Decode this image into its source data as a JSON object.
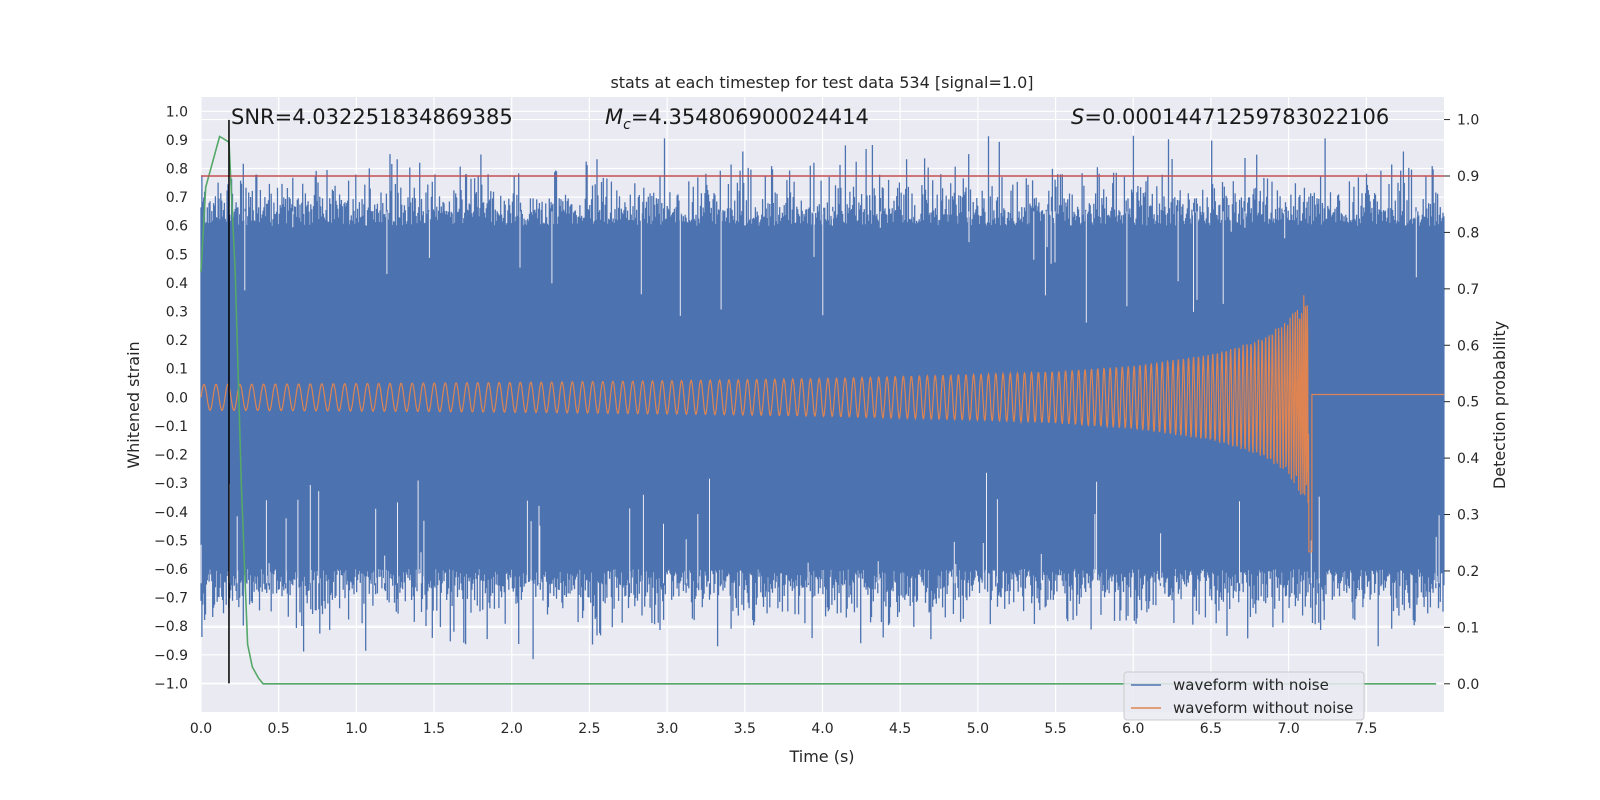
{
  "chart_data": {
    "type": "line",
    "title": "stats at each timestep for test data 534 [signal=1.0]",
    "xlabel": "Time (s)",
    "ylabel_left": "Whitened strain",
    "ylabel_right": "Detection probability",
    "xlim": [
      0.0,
      8.0
    ],
    "ylim_left": [
      -1.1,
      1.05
    ],
    "ylim_right": [
      -0.05,
      1.04
    ],
    "x_ticks": [
      0.0,
      0.5,
      1.0,
      1.5,
      2.0,
      2.5,
      3.0,
      3.5,
      4.0,
      4.5,
      5.0,
      5.5,
      6.0,
      6.5,
      7.0,
      7.5
    ],
    "x_tick_labels": [
      "0.0",
      "0.5",
      "1.0",
      "1.5",
      "2.0",
      "2.5",
      "3.0",
      "3.5",
      "4.0",
      "4.5",
      "5.0",
      "5.5",
      "6.0",
      "6.5",
      "7.0",
      "7.5"
    ],
    "y_left_ticks": [
      1.0,
      0.9,
      0.8,
      0.7,
      0.6,
      0.5,
      0.4,
      0.3,
      0.2,
      0.1,
      0.0,
      -0.1,
      -0.2,
      -0.3,
      -0.4,
      -0.5,
      -0.6,
      -0.7,
      -0.8,
      -0.9,
      -1.0
    ],
    "y_left_tick_labels": [
      "1.0",
      "0.9",
      "0.8",
      "0.7",
      "0.6",
      "0.5",
      "0.4",
      "0.3",
      "0.2",
      "0.1",
      "0.0",
      "−0.1",
      "−0.2",
      "−0.3",
      "−0.4",
      "−0.5",
      "−0.6",
      "−0.7",
      "−0.8",
      "−0.9",
      "−1.0"
    ],
    "y_right_ticks": [
      1.0,
      0.9,
      0.8,
      0.7,
      0.6,
      0.5,
      0.4,
      0.3,
      0.2,
      0.1,
      0.0
    ],
    "y_right_tick_labels": [
      "1.0",
      "0.9",
      "0.8",
      "0.7",
      "0.6",
      "0.5",
      "0.4",
      "0.3",
      "0.2",
      "0.1",
      "0.0"
    ],
    "grid": true,
    "legend_position": "bottom-right",
    "series": [
      {
        "name": "waveform with noise",
        "axis": "left",
        "color": "#4c72b0",
        "x_range": [
          0.0,
          8.0
        ],
        "typical_envelope": [
          -0.6,
          0.6
        ],
        "peak_range": [
          -1.0,
          0.95
        ]
      },
      {
        "name": "waveform without noise",
        "axis": "left",
        "color": "#dd8452",
        "x_range": [
          0.0,
          7.15
        ],
        "envelope_x": [
          0.0,
          1.0,
          2.0,
          3.0,
          4.0,
          5.0,
          5.5,
          6.0,
          6.5,
          6.8,
          7.0,
          7.1,
          7.15
        ],
        "envelope_amp": [
          0.045,
          0.048,
          0.052,
          0.058,
          0.066,
          0.08,
          0.09,
          0.11,
          0.15,
          0.2,
          0.27,
          0.36,
          0.46
        ],
        "post_merger_value": 0.01,
        "min_value": -0.54
      },
      {
        "name": "detection probability",
        "axis": "right",
        "color": "#55a868",
        "show_in_legend": false,
        "x": [
          0.0,
          0.03,
          0.07,
          0.12,
          0.18,
          0.22,
          0.26,
          0.3,
          0.33,
          0.37,
          0.4,
          0.5,
          1.0,
          2.0,
          3.0,
          4.0,
          5.0,
          6.0,
          7.0,
          7.95
        ],
        "y": [
          0.73,
          0.88,
          0.92,
          0.97,
          0.96,
          0.73,
          0.35,
          0.07,
          0.03,
          0.01,
          0.0,
          0.0,
          0.0,
          0.0,
          0.0,
          0.0,
          0.0,
          0.0,
          0.0,
          0.0
        ]
      }
    ],
    "threshold": {
      "axis": "right",
      "value": 0.9,
      "color": "#c44e52"
    },
    "marker_line": {
      "x": 0.18,
      "color": "#000000"
    },
    "annotations": {
      "snr": "SNR=4.032251834869385",
      "mc_symbol": "M",
      "mc_sub": "c",
      "mc_value": "=4.354806900024414",
      "s_symbol": "S",
      "s_value": "=0.00014471259783022106"
    },
    "legend": [
      {
        "label": "waveform with noise",
        "color": "#4c72b0"
      },
      {
        "label": "waveform without noise",
        "color": "#dd8452"
      }
    ],
    "colors": {
      "plot_background": "#eaeaf2",
      "grid": "#ffffff",
      "page_background": "#ffffff"
    }
  }
}
